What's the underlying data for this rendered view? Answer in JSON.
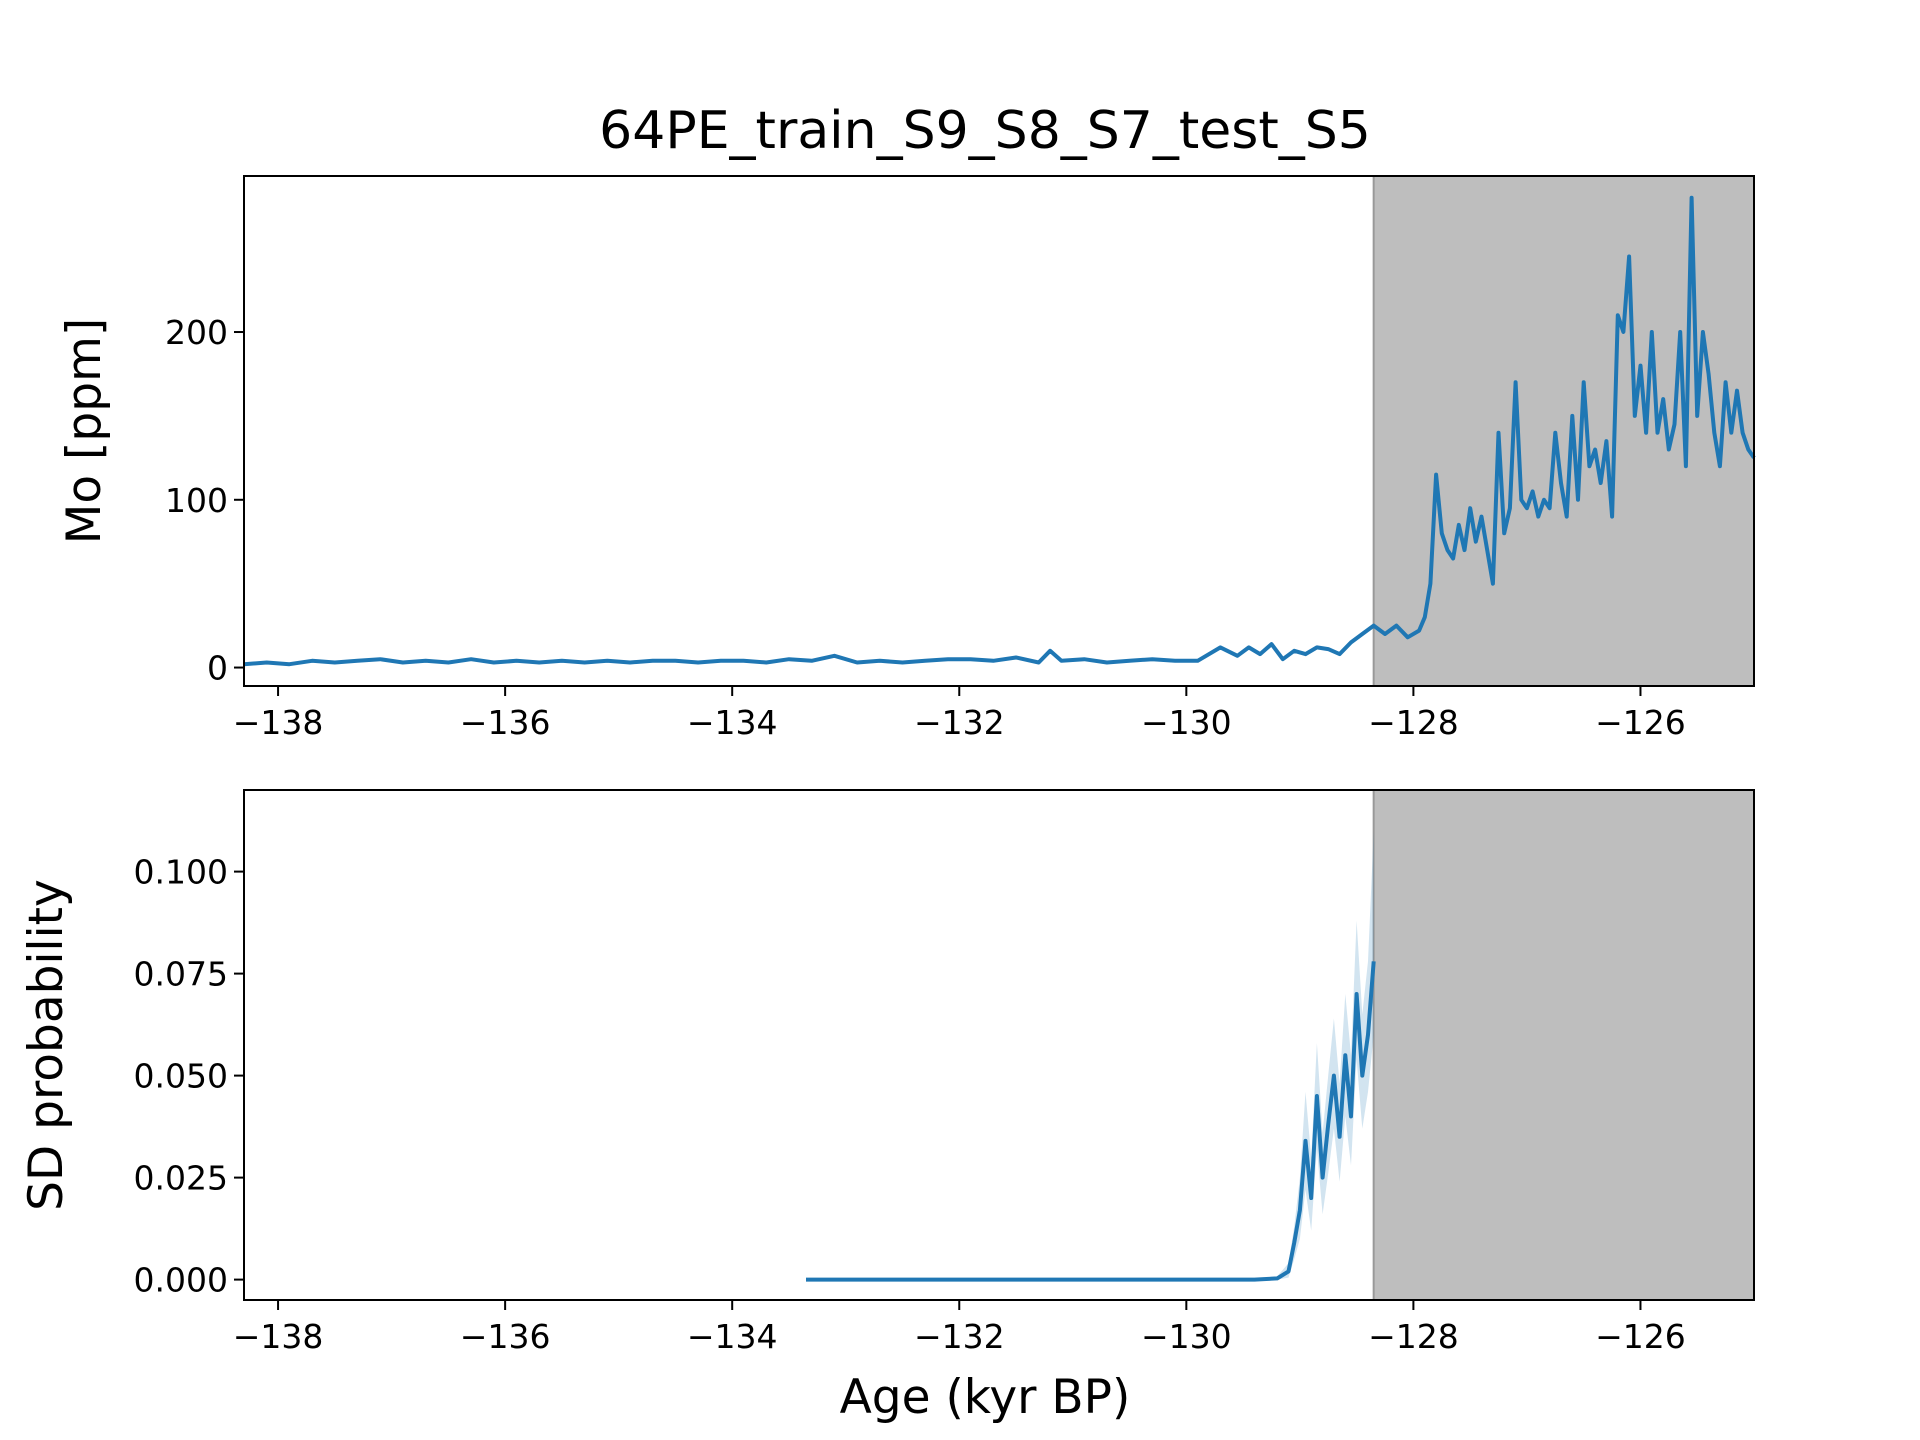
{
  "figure": {
    "title": "64PE_train_S9_S8_S7_test_S5",
    "xlabel": "Age (kyr BP)"
  },
  "chart_data": [
    {
      "type": "line",
      "title": "64PE_train_S9_S8_S7_test_S5",
      "xlabel": "",
      "ylabel": "Mo [ppm]",
      "xlim": [
        -138.3,
        -125.0
      ],
      "ylim": [
        -11,
        293
      ],
      "xticks": [
        -138,
        -136,
        -134,
        -132,
        -130,
        -128,
        -126
      ],
      "xtick_labels": [
        "−138",
        "−136",
        "−134",
        "−132",
        "−130",
        "−128",
        "−126"
      ],
      "yticks": [
        0,
        100,
        200
      ],
      "ytick_labels": [
        "0",
        "100",
        "200"
      ],
      "shaded_region": {
        "x_start": -128.35,
        "x_end": -125.0,
        "color": "#bebebe"
      },
      "line_color": "#1f77b4",
      "grid": false,
      "series": [
        {
          "x": [
            -138.3,
            -138.1,
            -137.9,
            -137.7,
            -137.5,
            -137.3,
            -137.1,
            -136.9,
            -136.7,
            -136.5,
            -136.3,
            -136.1,
            -135.9,
            -135.7,
            -135.5,
            -135.3,
            -135.1,
            -134.9,
            -134.7,
            -134.5,
            -134.3,
            -134.1,
            -133.9,
            -133.7,
            -133.5,
            -133.3,
            -133.1,
            -132.9,
            -132.7,
            -132.5,
            -132.3,
            -132.1,
            -131.9,
            -131.7,
            -131.5,
            -131.3,
            -131.2,
            -131.1,
            -130.9,
            -130.7,
            -130.5,
            -130.3,
            -130.1,
            -129.9,
            -129.7,
            -129.55,
            -129.45,
            -129.35,
            -129.25,
            -129.15,
            -129.05,
            -128.95,
            -128.85,
            -128.75,
            -128.65,
            -128.55,
            -128.45,
            -128.35,
            -128.25,
            -128.15,
            -128.05,
            -127.95,
            -127.9,
            -127.85,
            -127.8,
            -127.75,
            -127.7,
            -127.65,
            -127.6,
            -127.55,
            -127.5,
            -127.45,
            -127.4,
            -127.35,
            -127.3,
            -127.25,
            -127.2,
            -127.15,
            -127.1,
            -127.05,
            -127.0,
            -126.95,
            -126.9,
            -126.85,
            -126.8,
            -126.75,
            -126.7,
            -126.65,
            -126.6,
            -126.55,
            -126.5,
            -126.45,
            -126.4,
            -126.35,
            -126.3,
            -126.25,
            -126.2,
            -126.15,
            -126.1,
            -126.05,
            -126.0,
            -125.95,
            -125.9,
            -125.85,
            -125.8,
            -125.75,
            -125.7,
            -125.65,
            -125.6,
            -125.55,
            -125.5,
            -125.45,
            -125.4,
            -125.35,
            -125.3,
            -125.25,
            -125.2,
            -125.15,
            -125.1,
            -125.05,
            -125.0
          ],
          "y": [
            2,
            3,
            2,
            4,
            3,
            4,
            5,
            3,
            4,
            3,
            5,
            3,
            4,
            3,
            4,
            3,
            4,
            3,
            4,
            4,
            3,
            4,
            4,
            3,
            5,
            4,
            7,
            3,
            4,
            3,
            4,
            5,
            5,
            4,
            6,
            3,
            10,
            4,
            5,
            3,
            4,
            5,
            4,
            4,
            12,
            7,
            12,
            8,
            14,
            5,
            10,
            8,
            12,
            11,
            8,
            15,
            20,
            25,
            20,
            25,
            18,
            22,
            30,
            50,
            115,
            80,
            70,
            65,
            85,
            70,
            95,
            75,
            90,
            70,
            50,
            140,
            80,
            95,
            170,
            100,
            95,
            105,
            90,
            100,
            95,
            140,
            110,
            90,
            150,
            100,
            170,
            120,
            130,
            110,
            135,
            90,
            210,
            200,
            245,
            150,
            180,
            140,
            200,
            140,
            160,
            130,
            145,
            200,
            120,
            280,
            150,
            200,
            175,
            140,
            120,
            170,
            140,
            165,
            140,
            130,
            125
          ]
        }
      ]
    },
    {
      "type": "line",
      "title": "",
      "xlabel": "Age (kyr BP)",
      "ylabel": "SD probability",
      "xlim": [
        -138.3,
        -125.0
      ],
      "ylim": [
        -0.005,
        0.12
      ],
      "xticks": [
        -138,
        -136,
        -134,
        -132,
        -130,
        -128,
        -126
      ],
      "xtick_labels": [
        "−138",
        "−136",
        "−134",
        "−132",
        "−130",
        "−128",
        "−126"
      ],
      "yticks": [
        0.0,
        0.025,
        0.05,
        0.075,
        0.1
      ],
      "ytick_labels": [
        "0.000",
        "0.025",
        "0.050",
        "0.075",
        "0.100"
      ],
      "shaded_region": {
        "x_start": -128.35,
        "x_end": -125.0,
        "color": "#bebebe"
      },
      "line_color": "#1f77b4",
      "band_color": "#1f77b4",
      "grid": false,
      "series": [
        {
          "x": [
            -133.35,
            -132.0,
            -131.0,
            -130.0,
            -129.4,
            -129.2,
            -129.1,
            -129.05,
            -129.0,
            -128.95,
            -128.9,
            -128.85,
            -128.8,
            -128.75,
            -128.7,
            -128.65,
            -128.6,
            -128.55,
            -128.5,
            -128.45,
            -128.4,
            -128.35
          ],
          "y": [
            0.0,
            0.0,
            0.0,
            0.0,
            0.0,
            0.0003,
            0.002,
            0.009,
            0.017,
            0.034,
            0.02,
            0.045,
            0.025,
            0.038,
            0.05,
            0.035,
            0.055,
            0.04,
            0.07,
            0.05,
            0.06,
            0.078
          ],
          "lower": [
            0.0,
            0.0,
            0.0,
            0.0,
            0.0,
            0.0,
            0.0005,
            0.005,
            0.01,
            0.022,
            0.012,
            0.032,
            0.016,
            0.026,
            0.037,
            0.024,
            0.04,
            0.028,
            0.054,
            0.037,
            0.046,
            0.06
          ],
          "upper": [
            0.0,
            0.0,
            0.0,
            0.0,
            0.0,
            0.0008,
            0.004,
            0.013,
            0.025,
            0.046,
            0.03,
            0.058,
            0.036,
            0.05,
            0.064,
            0.048,
            0.07,
            0.055,
            0.088,
            0.065,
            0.078,
            0.11
          ]
        }
      ]
    }
  ]
}
